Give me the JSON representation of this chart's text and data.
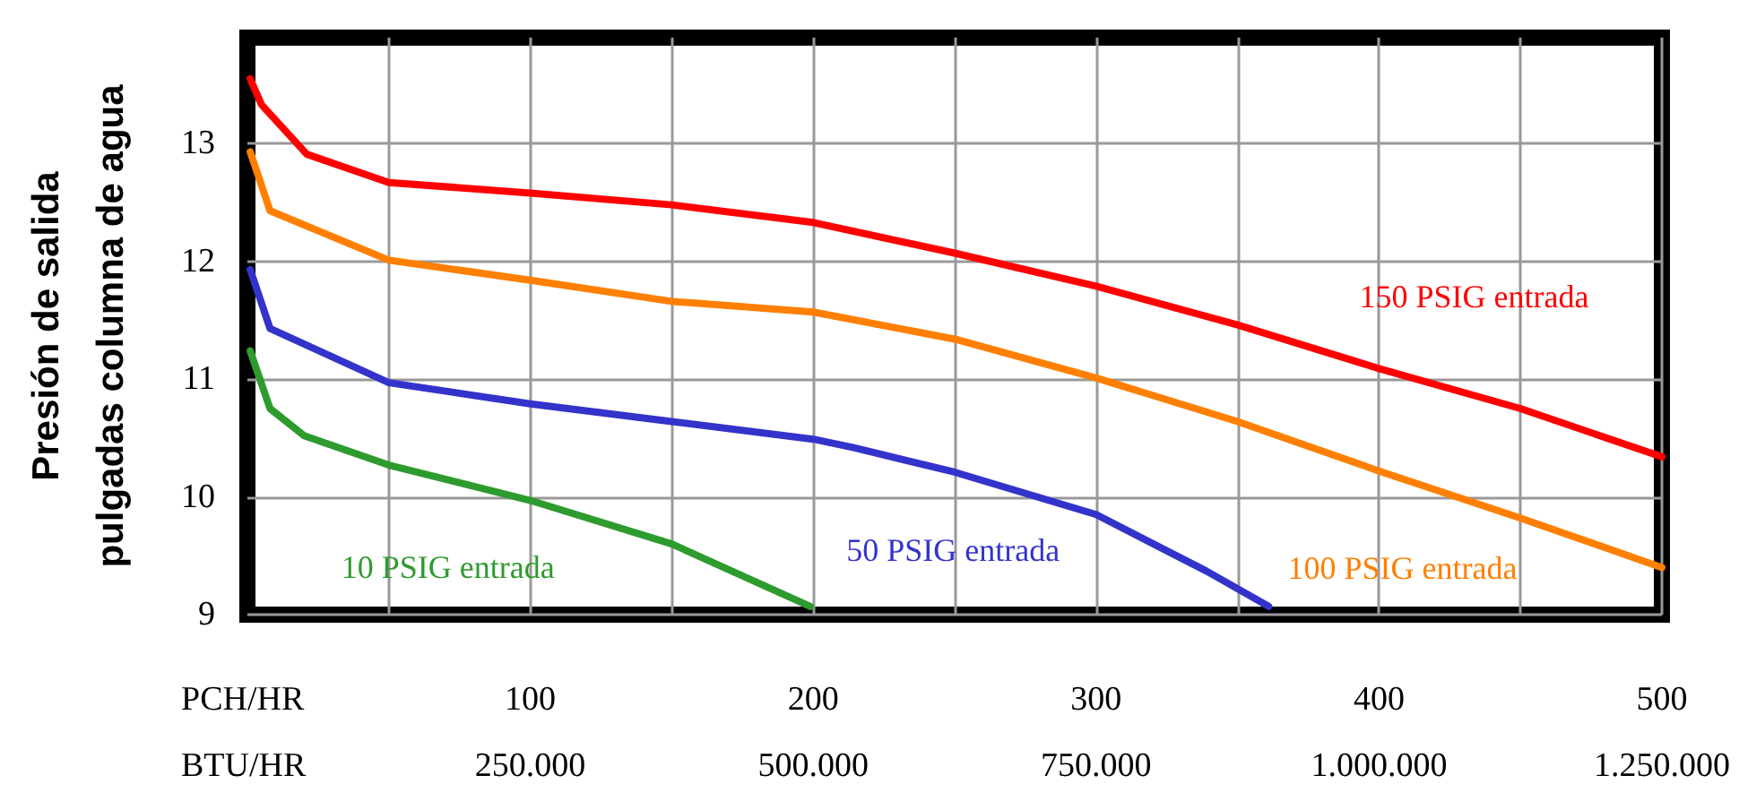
{
  "chart_data": {
    "type": "line",
    "ylabel": "Presión de salida\npulgadas columna de agua",
    "xlabel": "PCH/HR",
    "x2label": "BTU/HR",
    "xlim": [
      0,
      500
    ],
    "xticks": [
      {
        "value": 50,
        "label": null
      },
      100,
      {
        "value": 150,
        "label": null
      },
      200,
      {
        "value": 250,
        "label": null
      },
      300,
      {
        "value": 350,
        "label": null
      },
      400,
      {
        "value": 450,
        "label": null
      },
      500
    ],
    "x2lim": [
      0,
      1250000
    ],
    "x2ticks": [
      {
        "value": 250000,
        "label": "250.000"
      },
      {
        "value": 500000,
        "label": "500.000"
      },
      {
        "value": 750000,
        "label": "750.000"
      },
      {
        "value": 1000000,
        "label": "1.000.000"
      },
      {
        "value": 1250000,
        "label": "1.250.000"
      }
    ],
    "ylim": [
      9,
      13.9
    ],
    "yticks": [
      9,
      10,
      11,
      12,
      13
    ],
    "grid": true,
    "marker": "none",
    "line_style": "solid",
    "series": [
      {
        "name": "10 PSIG entrada",
        "color": "#2e9b2e",
        "x": [
          1,
          8,
          20,
          50,
          100,
          150,
          199
        ],
        "values": [
          11.24,
          10.75,
          10.52,
          10.27,
          9.97,
          9.6,
          9.07
        ]
      },
      {
        "name": "50 PSIG entrada",
        "color": "#3333cc",
        "x": [
          1,
          8,
          50,
          100,
          150,
          200,
          214,
          250,
          300,
          339,
          361
        ],
        "values": [
          11.93,
          11.43,
          10.97,
          10.79,
          10.64,
          10.49,
          10.42,
          10.21,
          9.85,
          9.37,
          9.07
        ]
      },
      {
        "name": "100 PSIG entrada",
        "color": "#ff7f00",
        "x": [
          1,
          8,
          50,
          100,
          150,
          200,
          250,
          300,
          350,
          400,
          450,
          500
        ],
        "values": [
          12.93,
          12.43,
          12.01,
          11.84,
          11.66,
          11.57,
          11.34,
          11.01,
          10.64,
          10.22,
          9.82,
          9.4
        ]
      },
      {
        "name": "150 PSIG entrada",
        "color": "#ff0000",
        "x": [
          1,
          5,
          21,
          50,
          100,
          150,
          200,
          250,
          300,
          350,
          400,
          450,
          500
        ],
        "values": [
          13.55,
          13.33,
          12.91,
          12.67,
          12.58,
          12.48,
          12.33,
          12.07,
          11.79,
          11.46,
          11.09,
          10.75,
          10.34
        ]
      }
    ]
  }
}
